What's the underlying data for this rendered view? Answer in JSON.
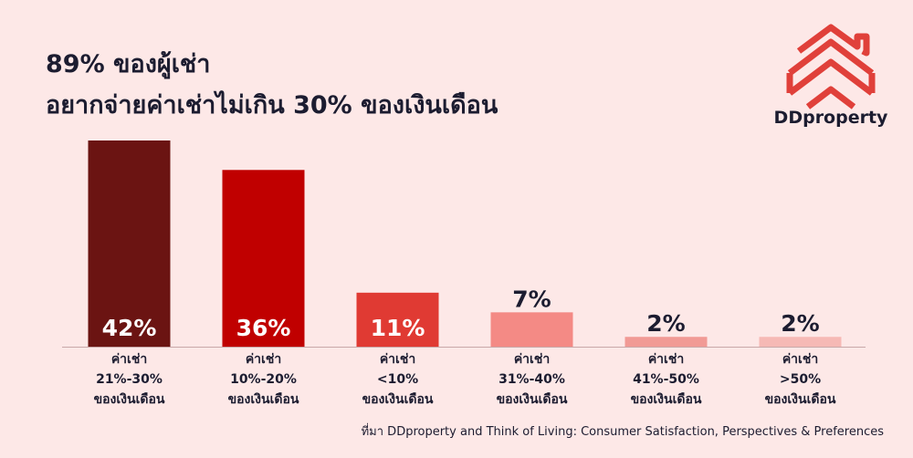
{
  "title_line1": "89% ของผู้เช่า",
  "title_line2": "อยากจ่ายค่าเช่าไม่เกิน 30% ของเงินเดือน",
  "brand": "DDproperty",
  "source": "ที่มา DDproperty and Think of Living: Consumer Satisfaction, Perspectives & Preferences",
  "colors": {
    "background": "#fde8e7",
    "text": "#1c1c30",
    "logo": "#e0403a",
    "bars": [
      "#6b1412",
      "#c00000",
      "#e03a33",
      "#f48a85",
      "#f19a95",
      "#f6b9b5"
    ]
  },
  "chart_data": {
    "type": "bar",
    "categories": [
      [
        "ค่าเช่า",
        "21%-30%",
        "ของเงินเดือน"
      ],
      [
        "ค่าเช่า",
        "10%-20%",
        "ของเงินเดือน"
      ],
      [
        "ค่าเช่า",
        "<10%",
        "ของเงินเดือน"
      ],
      [
        "ค่าเช่า",
        "31%-40%",
        "ของเงินเดือน"
      ],
      [
        "ค่าเช่า",
        "41%-50%",
        "ของเงินเดือน"
      ],
      [
        "ค่าเช่า",
        ">50%",
        "ของเงินเดือน"
      ]
    ],
    "values": [
      42,
      36,
      11,
      7,
      2,
      2
    ],
    "value_labels": [
      "42%",
      "36%",
      "11%",
      "7%",
      "2%",
      "2%"
    ],
    "ylim": [
      0,
      42
    ]
  }
}
